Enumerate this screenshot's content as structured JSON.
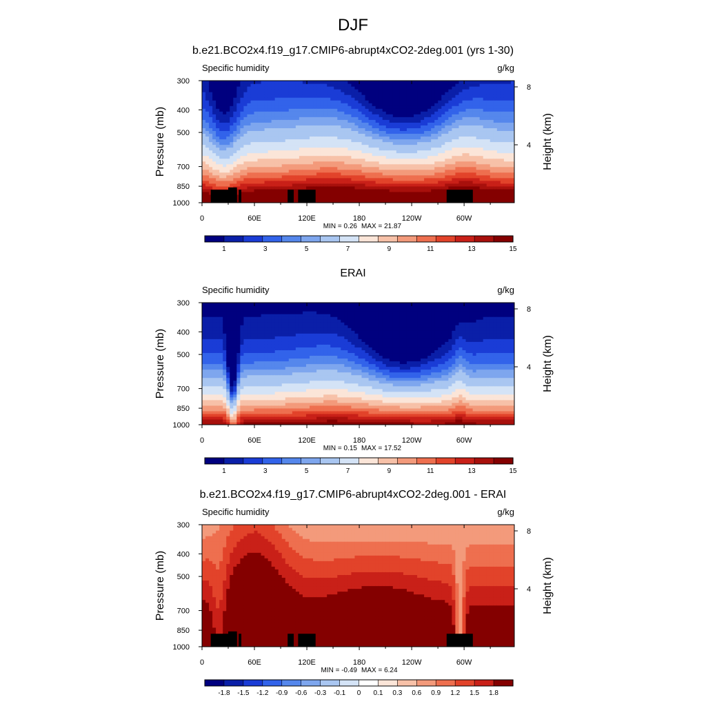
{
  "figure": {
    "title": "DJF"
  },
  "chart_data": [
    {
      "type": "heatmap",
      "panel_title": "b.e21.BCO2x4.f19_g17.CMIP6-abrupt4xCO2-2deg.001 (yrs 1-30)",
      "variable": "Specific humidity",
      "units": "g/kg",
      "ylabel": "Pressure (mb)",
      "ylabel_right": "Height (km)",
      "y_ticks": [
        "300",
        "400",
        "500",
        "700",
        "850",
        "1000"
      ],
      "y_tick_values": [
        300,
        400,
        500,
        700,
        850,
        1000
      ],
      "y_right_ticks": [
        "8",
        "4"
      ],
      "y_right_tick_values": [
        8,
        4
      ],
      "x_ticks": [
        "0",
        "60E",
        "120E",
        "180",
        "120W",
        "60W"
      ],
      "x_tick_values": [
        0,
        60,
        120,
        180,
        240,
        300
      ],
      "xlim": [
        0,
        357.5
      ],
      "ylim": [
        1000,
        300
      ],
      "min_label": "MIN =   0.26",
      "max_label": "MAX =  21.87",
      "min": 0.26,
      "max": 21.87,
      "colorbar_labels": [
        "1",
        "3",
        "5",
        "7",
        "9",
        "11",
        "13",
        "15"
      ],
      "colorbar_levels": [
        1,
        3,
        5,
        7,
        9,
        11,
        13,
        15
      ],
      "colorbar_colors": [
        "#00007f",
        "#0a1fa8",
        "#1a3cd6",
        "#3263ea",
        "#5587ec",
        "#7ea6ee",
        "#a9c6f1",
        "#d4e3f6",
        "#fbe5d8",
        "#f7c1a8",
        "#f39a7b",
        "#ee6f4f",
        "#e2432a",
        "#c92018",
        "#a8100c",
        "#840000"
      ],
      "contour_levels": [
        0.5,
        1,
        1.5,
        2,
        2.5,
        3,
        4,
        5,
        6,
        7,
        8,
        9,
        10,
        11,
        12,
        13,
        14,
        15
      ],
      "terrain": [
        [
          10,
          40,
          880
        ],
        [
          42,
          45,
          880
        ],
        [
          98,
          105,
          880
        ],
        [
          110,
          130,
          880
        ],
        [
          280,
          310,
          880
        ],
        [
          30,
          40,
          860
        ]
      ]
    },
    {
      "type": "heatmap",
      "panel_title": "ERAI",
      "variable": "Specific humidity",
      "units": "g/kg",
      "ylabel": "Pressure (mb)",
      "ylabel_right": "Height (km)",
      "y_ticks": [
        "300",
        "400",
        "500",
        "700",
        "850",
        "1000"
      ],
      "y_tick_values": [
        300,
        400,
        500,
        700,
        850,
        1000
      ],
      "y_right_ticks": [
        "8",
        "4"
      ],
      "y_right_tick_values": [
        8,
        4
      ],
      "x_ticks": [
        "0",
        "60E",
        "120E",
        "180",
        "120W",
        "60W"
      ],
      "x_tick_values": [
        0,
        60,
        120,
        180,
        240,
        300
      ],
      "xlim": [
        0,
        357.5
      ],
      "ylim": [
        1000,
        300
      ],
      "min_label": "MIN =   0.15",
      "max_label": "MAX =  17.52",
      "min": 0.15,
      "max": 17.52,
      "colorbar_labels": [
        "1",
        "3",
        "5",
        "7",
        "9",
        "11",
        "13",
        "15"
      ],
      "colorbar_levels": [
        1,
        3,
        5,
        7,
        9,
        11,
        13,
        15
      ],
      "colorbar_colors": [
        "#00007f",
        "#0a1fa8",
        "#1a3cd6",
        "#3263ea",
        "#5587ec",
        "#7ea6ee",
        "#a9c6f1",
        "#d4e3f6",
        "#fbe5d8",
        "#f7c1a8",
        "#f39a7b",
        "#ee6f4f",
        "#e2432a",
        "#c92018",
        "#a8100c",
        "#840000"
      ],
      "contour_levels": [
        0.5,
        1,
        1.5,
        2,
        2.5,
        3,
        4,
        5,
        6,
        7,
        8,
        9,
        10,
        11,
        12,
        13,
        14,
        15
      ],
      "terrain": []
    },
    {
      "type": "heatmap",
      "panel_title": "b.e21.BCO2x4.f19_g17.CMIP6-abrupt4xCO2-2deg.001 - ERAI",
      "variable": "Specific humidity",
      "units": "g/kg",
      "ylabel": "Pressure (mb)",
      "ylabel_right": "Height (km)",
      "y_ticks": [
        "300",
        "400",
        "500",
        "700",
        "850",
        "1000"
      ],
      "y_tick_values": [
        300,
        400,
        500,
        700,
        850,
        1000
      ],
      "y_right_ticks": [
        "8",
        "4"
      ],
      "y_right_tick_values": [
        8,
        4
      ],
      "x_ticks": [
        "0",
        "60E",
        "120E",
        "180",
        "120W",
        "60W"
      ],
      "x_tick_values": [
        0,
        60,
        120,
        180,
        240,
        300
      ],
      "xlim": [
        0,
        357.5
      ],
      "ylim": [
        1000,
        300
      ],
      "min_label": "MIN =  -0.49",
      "max_label": "MAX =   6.24",
      "min": -0.49,
      "max": 6.24,
      "colorbar_labels": [
        "-1.8",
        "-1.5",
        "-1.2",
        "-0.9",
        "-0.6",
        "-0.3",
        "-0.1",
        "0",
        "0.1",
        "0.3",
        "0.6",
        "0.9",
        "1.2",
        "1.5",
        "1.8"
      ],
      "colorbar_levels": [
        -1.8,
        -1.5,
        -1.2,
        -0.9,
        -0.6,
        -0.3,
        -0.1,
        0,
        0.1,
        0.3,
        0.6,
        0.9,
        1.2,
        1.5,
        1.8
      ],
      "colorbar_colors": [
        "#00007f",
        "#0a1fa8",
        "#1a3cd6",
        "#3263ea",
        "#5587ec",
        "#7ea6ee",
        "#a9c6f1",
        "#d4e3f6",
        "#ffffff",
        "#fbe5d8",
        "#f7c1a8",
        "#f39a7b",
        "#ee6f4f",
        "#e2432a",
        "#c92018",
        "#840000"
      ],
      "contour_levels": [
        -1.8,
        -1.5,
        -1.2,
        -0.9,
        -0.6,
        -0.3,
        -0.1,
        0,
        0.1,
        0.3,
        0.6,
        0.9,
        1.2,
        1.5,
        1.8
      ],
      "terrain": [
        [
          10,
          40,
          880
        ],
        [
          42,
          45,
          880
        ],
        [
          98,
          105,
          880
        ],
        [
          110,
          130,
          880
        ],
        [
          280,
          310,
          880
        ],
        [
          30,
          40,
          860
        ]
      ]
    }
  ]
}
